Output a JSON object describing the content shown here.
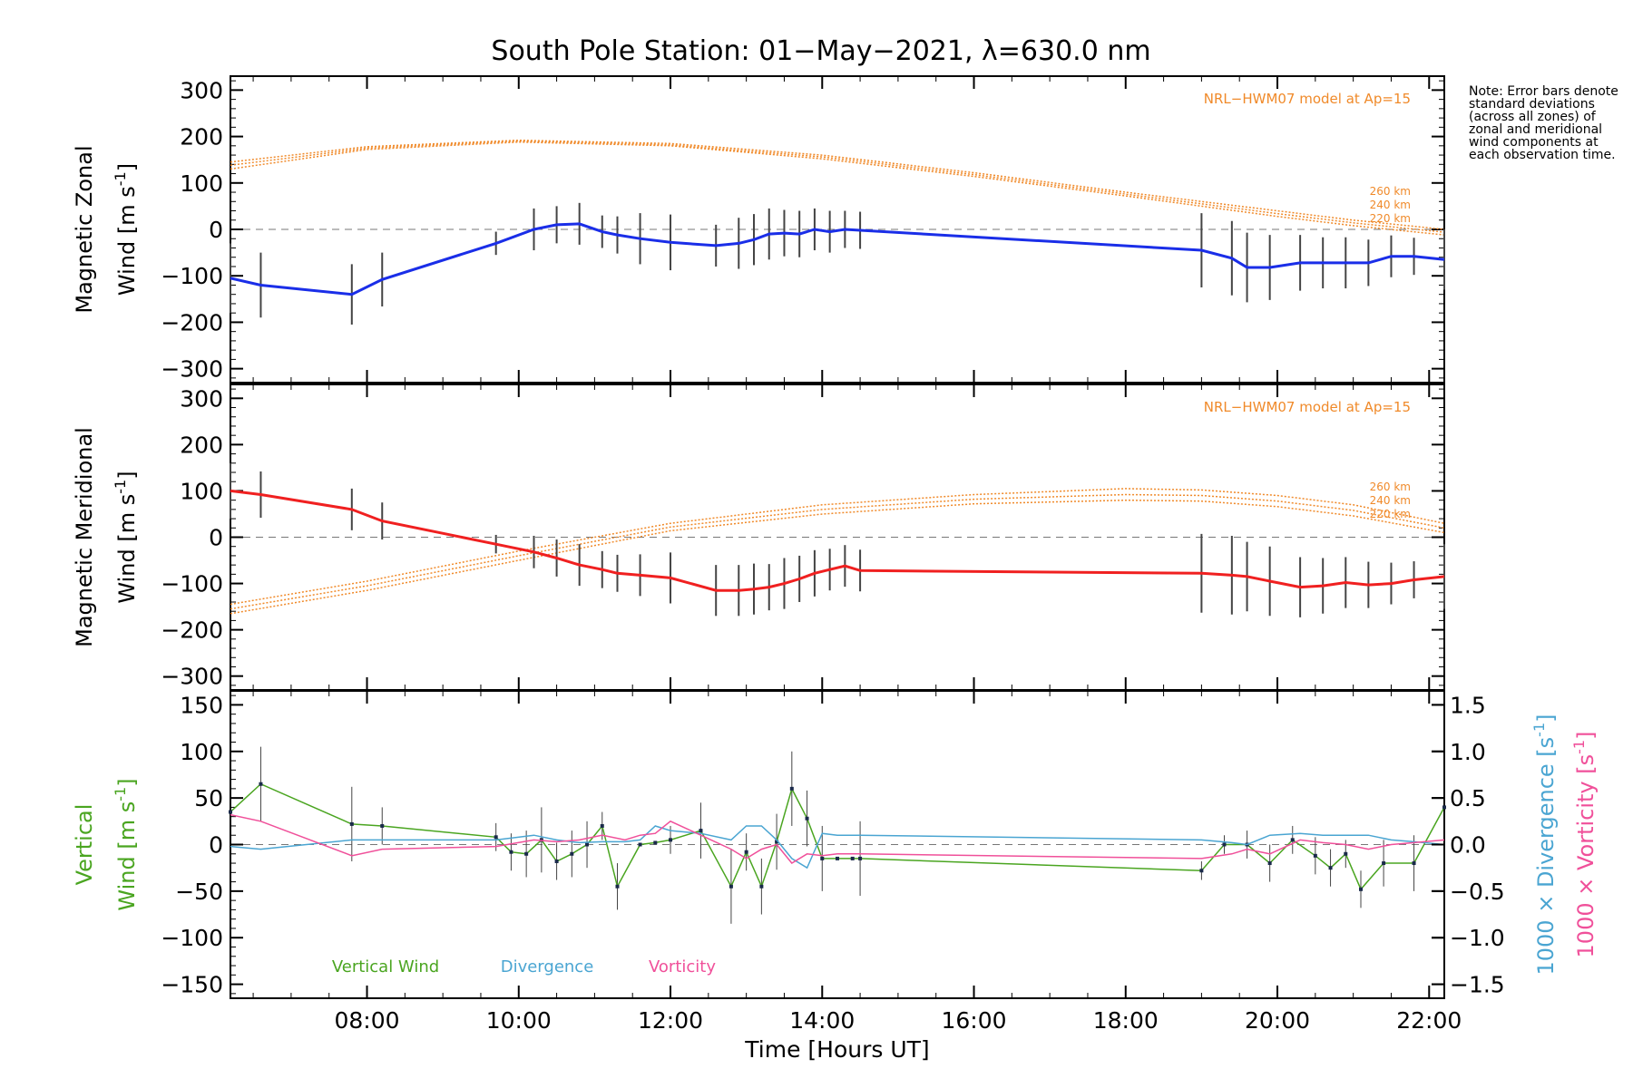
{
  "title": "South Pole Station: 01−May−2021, λ=630.0 nm",
  "note": "Note: Error bars denote standard deviations (across all zones) of zonal and meridional wind components at each observation time.",
  "colors": {
    "zonal": "#1a2ee8",
    "meridional": "#f02020",
    "vertical": "#4aa520",
    "divergence": "#4aa5d2",
    "vorticity": "#f0509a",
    "model": "#f08a2a",
    "errorbar": "#444444"
  },
  "chart_data": [
    {
      "type": "line",
      "panel": "zonal",
      "ylabel": "Magnetic Zonal Wind [m s⁻¹]",
      "ylabel_line1": "Magnetic Zonal",
      "ylabel_line2": "Wind [m s",
      "ylabel_sup": "-1",
      "ylabel_close": "]",
      "xlim": [
        6.2,
        22.2
      ],
      "ylim": [
        -330,
        330
      ],
      "yticks": [
        300,
        200,
        100,
        0,
        -100,
        -200,
        -300
      ],
      "ytick_labels": [
        "300",
        "200",
        "100",
        "0",
        "−100",
        "−200",
        "−300"
      ],
      "model_label": "NRL−HWM07 model at Ap=15",
      "model_heights": [
        "260 km",
        "240 km",
        "220 km"
      ],
      "model_series": [
        {
          "name": "260 km",
          "x": [
            6.2,
            8,
            10,
            12,
            14,
            16,
            18,
            20,
            21,
            22.2
          ],
          "values": [
            145,
            178,
            192,
            185,
            160,
            122,
            80,
            40,
            20,
            0
          ]
        },
        {
          "name": "240 km",
          "x": [
            6.2,
            8,
            10,
            12,
            14,
            16,
            18,
            20,
            21,
            22.2
          ],
          "values": [
            138,
            175,
            190,
            182,
            156,
            118,
            76,
            34,
            14,
            -6
          ]
        },
        {
          "name": "220 km",
          "x": [
            6.2,
            8,
            10,
            12,
            14,
            16,
            18,
            20,
            21,
            22.2
          ],
          "values": [
            130,
            172,
            188,
            180,
            152,
            114,
            72,
            28,
            8,
            -12
          ]
        }
      ],
      "series": [
        {
          "name": "Zonal Wind",
          "x": [
            6.2,
            6.6,
            7.8,
            8.2,
            9.7,
            10.2,
            10.5,
            10.8,
            11.1,
            11.3,
            11.6,
            12.0,
            12.6,
            12.9,
            13.1,
            13.3,
            13.5,
            13.7,
            13.9,
            14.1,
            14.3,
            14.5,
            19.0,
            19.4,
            19.6,
            19.9,
            20.3,
            20.6,
            20.9,
            21.2,
            21.5,
            21.8,
            22.2
          ],
          "values": [
            -105,
            -120,
            -140,
            -108,
            -30,
            0,
            10,
            12,
            -5,
            -12,
            -20,
            -28,
            -35,
            -30,
            -22,
            -10,
            -8,
            -10,
            0,
            -5,
            0,
            -2,
            -45,
            -62,
            -82,
            -82,
            -72,
            -72,
            -72,
            -72,
            -58,
            -58,
            -65
          ],
          "err": [
            75,
            70,
            65,
            58,
            25,
            45,
            40,
            45,
            35,
            40,
            55,
            60,
            45,
            55,
            55,
            55,
            50,
            50,
            45,
            45,
            40,
            40,
            80,
            80,
            75,
            70,
            60,
            55,
            55,
            50,
            45,
            40,
            65
          ]
        }
      ]
    },
    {
      "type": "line",
      "panel": "meridional",
      "ylabel": "Magnetic Meridional Wind [m s⁻¹]",
      "ylabel_line1": "Magnetic Meridional",
      "ylabel_line2": "Wind [m s",
      "ylabel_sup": "-1",
      "ylabel_close": "]",
      "xlim": [
        6.2,
        22.2
      ],
      "ylim": [
        -330,
        330
      ],
      "yticks": [
        300,
        200,
        100,
        0,
        -100,
        -200,
        -300
      ],
      "ytick_labels": [
        "300",
        "200",
        "100",
        "0",
        "−100",
        "−200",
        "−300"
      ],
      "model_label": "NRL−HWM07 model at Ap=15",
      "model_heights": [
        "260 km",
        "240 km",
        "220 km"
      ],
      "model_series": [
        {
          "name": "260 km",
          "x": [
            6.2,
            8,
            10,
            12,
            14,
            16,
            18,
            19,
            20,
            21,
            22.2
          ],
          "values": [
            -145,
            -95,
            -30,
            30,
            70,
            92,
            105,
            102,
            90,
            70,
            30
          ]
        },
        {
          "name": "240 km",
          "x": [
            6.2,
            8,
            10,
            12,
            14,
            16,
            18,
            19,
            20,
            21,
            22.2
          ],
          "values": [
            -155,
            -105,
            -40,
            22,
            60,
            82,
            92,
            90,
            78,
            58,
            20
          ]
        },
        {
          "name": "220 km",
          "x": [
            6.2,
            8,
            10,
            12,
            14,
            16,
            18,
            19,
            20,
            21,
            22.2
          ],
          "values": [
            -165,
            -115,
            -50,
            14,
            50,
            72,
            80,
            78,
            66,
            46,
            10
          ]
        }
      ],
      "series": [
        {
          "name": "Meridional Wind",
          "x": [
            6.2,
            6.6,
            7.8,
            8.2,
            9.7,
            10.2,
            10.5,
            10.8,
            11.1,
            11.3,
            11.6,
            12.0,
            12.6,
            12.9,
            13.1,
            13.3,
            13.5,
            13.7,
            13.9,
            14.1,
            14.3,
            14.5,
            19.0,
            19.4,
            19.6,
            19.9,
            20.3,
            20.6,
            20.9,
            21.2,
            21.5,
            21.8,
            22.2
          ],
          "values": [
            100,
            92,
            60,
            35,
            -15,
            -32,
            -45,
            -60,
            -70,
            -78,
            -82,
            -88,
            -115,
            -115,
            -112,
            -108,
            -100,
            -90,
            -78,
            -70,
            -62,
            -72,
            -78,
            -82,
            -85,
            -95,
            -108,
            -105,
            -98,
            -103,
            -100,
            -92,
            -85
          ],
          "err": [
            60,
            50,
            45,
            40,
            20,
            35,
            40,
            45,
            40,
            40,
            45,
            55,
            55,
            55,
            55,
            50,
            55,
            50,
            50,
            45,
            45,
            45,
            85,
            85,
            75,
            75,
            65,
            60,
            55,
            50,
            45,
            40,
            70
          ]
        }
      ]
    },
    {
      "type": "line",
      "panel": "vertical",
      "ylabel_left": "Vertical Wind [m s⁻¹]",
      "ylabel_line1": "Vertical",
      "ylabel_line2": "Wind [m s",
      "ylabel_sup": "-1",
      "ylabel_close": "]",
      "ylabel_right1": "1000 × Divergence [s",
      "ylabel_right2": "1000 × Vorticity [s",
      "xlim": [
        6.2,
        22.2
      ],
      "ylim": [
        -165,
        165
      ],
      "yticks": [
        150,
        100,
        50,
        0,
        -50,
        -100,
        -150
      ],
      "ytick_labels": [
        "150",
        "100",
        "50",
        "0",
        "−50",
        "−100",
        "−150"
      ],
      "y2lim": [
        -1.65,
        1.65
      ],
      "y2ticks": [
        1.5,
        1.0,
        0.5,
        0.0,
        -0.5,
        -1.0,
        -1.5
      ],
      "y2tick_labels": [
        "1.5",
        "1.0",
        "0.5",
        "0.0",
        "−0.5",
        "−1.0",
        "−1.5"
      ],
      "xticks": [
        8,
        10,
        12,
        14,
        16,
        18,
        20,
        22
      ],
      "xtick_labels": [
        "08:00",
        "10:00",
        "12:00",
        "14:00",
        "16:00",
        "18:00",
        "20:00",
        "22:00"
      ],
      "xlabel": "Time [Hours UT]",
      "legend": [
        "Vertical Wind",
        "Divergence",
        "Vorticity"
      ],
      "series": [
        {
          "name": "Vertical Wind",
          "axis": "left",
          "x": [
            6.2,
            6.6,
            7.8,
            8.2,
            9.7,
            9.9,
            10.1,
            10.3,
            10.5,
            10.7,
            10.9,
            11.1,
            11.3,
            11.6,
            11.8,
            12.0,
            12.4,
            12.8,
            13.0,
            13.2,
            13.4,
            13.6,
            13.8,
            14.0,
            14.2,
            14.4,
            14.5,
            19.0,
            19.3,
            19.6,
            19.9,
            20.2,
            20.5,
            20.7,
            20.9,
            21.1,
            21.4,
            21.8,
            22.2
          ],
          "values": [
            35,
            65,
            22,
            20,
            8,
            -8,
            -10,
            5,
            -18,
            -10,
            0,
            20,
            -45,
            0,
            2,
            5,
            15,
            -45,
            -8,
            -45,
            3,
            60,
            28,
            -15,
            -15,
            -15,
            -15,
            -28,
            0,
            0,
            -20,
            5,
            -12,
            -25,
            -10,
            -48,
            -20,
            -20,
            40
          ],
          "err": [
            0,
            40,
            40,
            20,
            15,
            20,
            25,
            35,
            20,
            25,
            25,
            15,
            25,
            0,
            0,
            15,
            30,
            40,
            20,
            30,
            30,
            40,
            30,
            35,
            0,
            0,
            40,
            10,
            10,
            15,
            20,
            15,
            20,
            20,
            15,
            20,
            25,
            30,
            0
          ]
        },
        {
          "name": "Divergence",
          "axis": "right",
          "x": [
            6.2,
            6.6,
            7.8,
            8.2,
            9.7,
            10.2,
            10.5,
            10.8,
            11.1,
            11.4,
            11.6,
            11.8,
            12.0,
            12.4,
            12.8,
            13.0,
            13.2,
            13.4,
            13.6,
            13.8,
            14.0,
            14.2,
            14.4,
            14.5,
            19.0,
            19.4,
            19.6,
            19.9,
            20.3,
            20.6,
            20.9,
            21.2,
            21.5,
            21.8,
            22.2
          ],
          "values": [
            -0.02,
            -0.05,
            0.05,
            0.05,
            0.05,
            0.1,
            0.05,
            0.02,
            0.03,
            0.03,
            0.05,
            0.2,
            0.15,
            0.12,
            0.05,
            0.2,
            0.2,
            0.05,
            -0.15,
            -0.25,
            0.12,
            0.1,
            0.1,
            0.1,
            0.05,
            0.02,
            0.0,
            0.1,
            0.12,
            0.1,
            0.1,
            0.1,
            0.05,
            0.03,
            0.0
          ]
        },
        {
          "name": "Vorticity",
          "axis": "right",
          "x": [
            6.2,
            6.6,
            7.8,
            8.2,
            9.7,
            10.2,
            10.5,
            10.8,
            11.1,
            11.4,
            11.6,
            11.8,
            12.0,
            12.4,
            12.8,
            13.0,
            13.2,
            13.4,
            13.6,
            13.8,
            14.0,
            14.2,
            14.4,
            14.5,
            19.0,
            19.4,
            19.6,
            19.9,
            20.3,
            20.6,
            20.9,
            21.2,
            21.5,
            21.8,
            22.2
          ],
          "values": [
            0.32,
            0.25,
            -0.12,
            -0.05,
            -0.02,
            0.05,
            0.03,
            0.05,
            0.1,
            0.05,
            0.1,
            0.12,
            0.25,
            0.1,
            -0.05,
            -0.15,
            -0.05,
            0.0,
            -0.2,
            -0.1,
            -0.12,
            -0.1,
            -0.1,
            -0.1,
            -0.15,
            -0.1,
            -0.05,
            -0.1,
            0.05,
            0.02,
            0.0,
            -0.05,
            0.0,
            0.02,
            0.05
          ]
        }
      ]
    }
  ]
}
